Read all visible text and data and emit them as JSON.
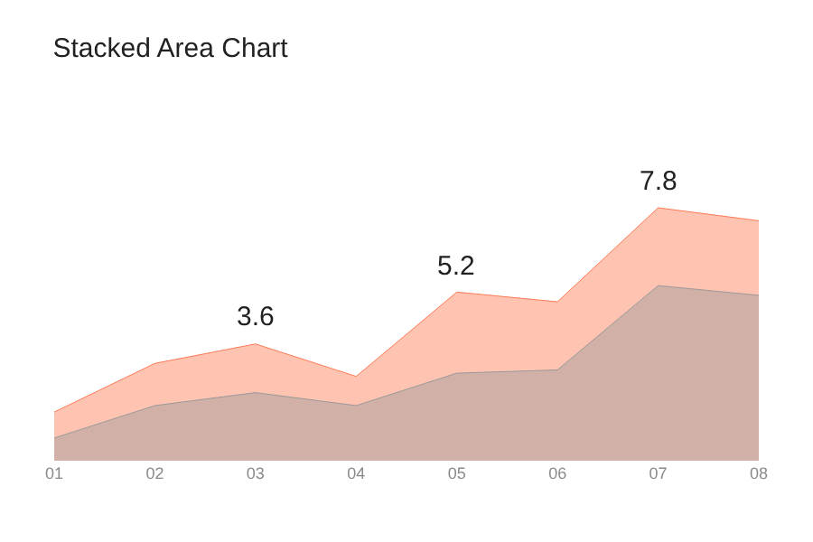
{
  "chart_data": {
    "type": "area",
    "title": "Stacked Area Chart",
    "categories": [
      "01",
      "02",
      "03",
      "04",
      "05",
      "06",
      "07",
      "08"
    ],
    "tick_labels": "x",
    "grid": false,
    "series": [
      {
        "color": "#ff7a55",
        "values": [
          1.5,
          3.0,
          3.6,
          2.6,
          5.2,
          4.9,
          7.8,
          7.4
        ],
        "value_labels": [
          null,
          null,
          "3.6",
          null,
          "5.2",
          null,
          "7.8",
          null
        ]
      },
      {
        "color": "#9a9a9a",
        "values": [
          0.7,
          1.7,
          2.1,
          1.7,
          2.7,
          2.8,
          5.4,
          5.1
        ]
      }
    ]
  }
}
